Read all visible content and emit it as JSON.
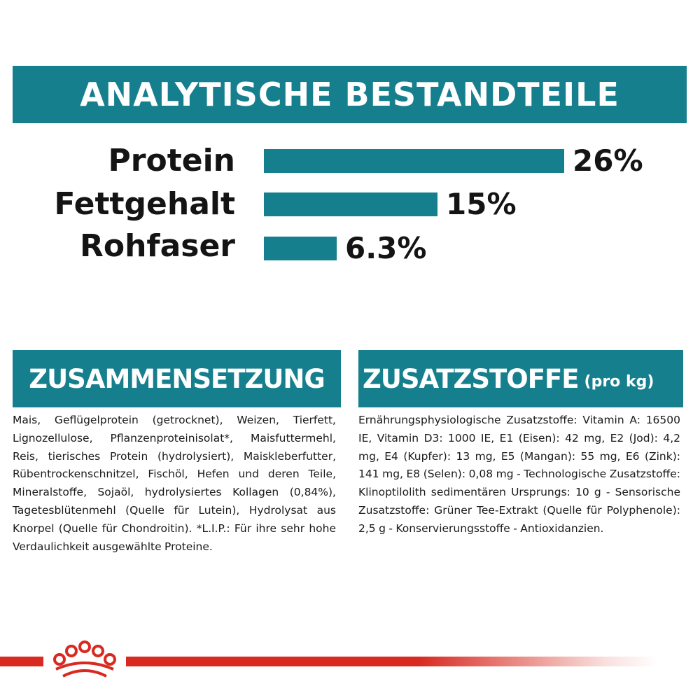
{
  "header": {
    "title": "ANALYTISCHE BESTANDTEILE"
  },
  "analysis": {
    "items": [
      {
        "label": "Protein",
        "value_text": "26%",
        "value": 26
      },
      {
        "label": "Fettgehalt",
        "value_text": "15%",
        "value": 15
      },
      {
        "label": "Rohfaser",
        "value_text": "6.3%",
        "value": 6.3
      }
    ]
  },
  "composition": {
    "heading": "ZUSAMMENSETZUNG",
    "text": "Mais, Geflügelprotein (getrocknet), Weizen, Tierfett, Lignozellulose, Pflanzenproteinisolat*, Maisfuttermehl, Reis, tierisches Protein (hydrolysiert), Maiskleberfutter, Rübentrockenschnitzel, Fischöl, Hefen und deren Teile, Mineralstoffe, Sojaöl, hydrolysiertes Kollagen (0,84%), Tagetesblütenmehl (Quelle für Lutein), Hydrolysat aus Knorpel (Quelle für Chondroitin). *L.I.P.: Für ihre sehr hohe Verdaulichkeit ausgewählte Proteine."
  },
  "additives": {
    "heading": "ZUSATZSTOFFE",
    "heading_suffix": "(pro kg)",
    "text": "Ernährungsphysiologische Zusatzstoffe: Vitamin A: 16500 IE, Vitamin D3: 1000 IE, E1 (Eisen): 42 mg, E2 (Jod): 4,2 mg, E4 (Kupfer): 13 mg, E5 (Mangan): 55 mg, E6 (Zink): 141 mg, E8 (Selen): 0,08 mg - Technologische Zusatzstoffe: Klinoptilolith sedimentären Ursprungs: 10 g - Sensorische Zusatzstoffe: Grüner Tee-Extrakt (Quelle für Polyphenole): 2,5 g - Konservierungsstoffe - Antioxidanzien."
  },
  "colors": {
    "accent": "#167f8d",
    "brand_red": "#d82a20",
    "text": "#141414"
  },
  "logo": {
    "icon": "crown-icon"
  }
}
